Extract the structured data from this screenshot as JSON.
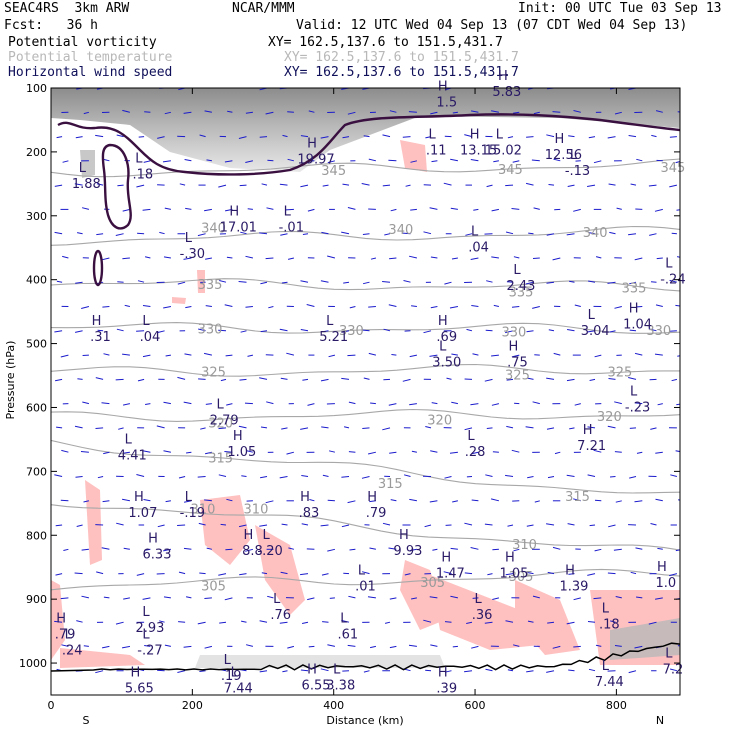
{
  "header": {
    "model": "SEAC4RS  3km ARW",
    "org": "NCAR/MMM",
    "init": "Init: 00 UTC Tue 03 Sep 13",
    "fcst": "Fcst:   36 h",
    "valid": "Valid: 12 UTC Wed 04 Sep 13 (07 CDT Wed 04 Sep 13)",
    "fields": [
      {
        "name": "Potential vorticity",
        "xy": "XY= 162.5,137.6 to 151.5,431.7",
        "color": "#000000"
      },
      {
        "name": "Potential temperature",
        "xy": "XY= 162.5,137.6 to 151.5,431.7",
        "color": "#b8b8b8"
      },
      {
        "name": "Horizontal wind speed",
        "xy": "XY= 162.5,137.6 to 151.5,431.7",
        "color": "#10105a"
      }
    ]
  },
  "chart_data": {
    "type": "cross-section",
    "xlabel": "Distance (km)",
    "ylabel": "Pressure (hPa)",
    "xlim": [
      0,
      890
    ],
    "ylim": [
      1050,
      100
    ],
    "x_ticks": [
      0,
      200,
      400,
      600,
      800
    ],
    "y_ticks": [
      100,
      200,
      300,
      400,
      500,
      600,
      700,
      800,
      900,
      1000
    ],
    "endpoints": {
      "left": "S",
      "right": "N"
    },
    "isentropes": [
      {
        "theta": "345",
        "label_positions": [
          [
            400,
            230
          ],
          [
            650,
            228
          ],
          [
            880,
            225
          ]
        ],
        "p_left": 232,
        "p_right": 220
      },
      {
        "theta": "340",
        "label_positions": [
          [
            230,
            320
          ],
          [
            495,
            322
          ],
          [
            770,
            327
          ]
        ],
        "p_left": 338,
        "p_right": 325
      },
      {
        "theta": "335",
        "label_positions": [
          [
            225,
            408
          ],
          [
            665,
            420
          ],
          [
            825,
            414
          ]
        ],
        "p_left": 405,
        "p_right": 412
      },
      {
        "theta": "330",
        "label_positions": [
          [
            225,
            478
          ],
          [
            425,
            480
          ],
          [
            655,
            483
          ],
          [
            860,
            480
          ]
        ],
        "p_left": 475,
        "p_right": 478
      },
      {
        "theta": "325",
        "label_positions": [
          [
            230,
            545
          ],
          [
            660,
            550
          ],
          [
            805,
            545
          ]
        ],
        "p_left": 545,
        "p_right": 540
      },
      {
        "theta": "320",
        "label_positions": [
          [
            240,
            625
          ],
          [
            550,
            620
          ],
          [
            790,
            615
          ]
        ],
        "p_left": 615,
        "p_right": 610
      },
      {
        "theta": "315",
        "label_positions": [
          [
            240,
            680
          ],
          [
            480,
            720
          ],
          [
            745,
            740
          ]
        ],
        "p_left": 655,
        "p_right": 740
      },
      {
        "theta": "310",
        "label_positions": [
          [
            215,
            760
          ],
          [
            290,
            760
          ],
          [
            670,
            815
          ]
        ],
        "p_left": 745,
        "p_right": 830
      },
      {
        "theta": "305",
        "label_positions": [
          [
            230,
            880
          ],
          [
            540,
            875
          ],
          [
            665,
            865
          ]
        ],
        "p_left": 880,
        "p_right": 860
      }
    ],
    "extrema": [
      {
        "type": "H",
        "value": "19.97",
        "x": 375,
        "p": 212
      },
      {
        "type": "L",
        "value": ".11",
        "x": 545,
        "p": 198
      },
      {
        "type": "H",
        "value": "13.15",
        "x": 605,
        "p": 198
      },
      {
        "type": "L",
        "value": "15.02",
        "x": 640,
        "p": 198
      },
      {
        "type": "H",
        "value": "12.56",
        "x": 725,
        "p": 205
      },
      {
        "type": "L",
        "value": "-.13",
        "x": 745,
        "p": 230
      },
      {
        "type": "H",
        "value": "1.5",
        "x": 560,
        "p": 123
      },
      {
        "type": "H",
        "value": "5.83",
        "x": 645,
        "p": 106
      },
      {
        "type": "L",
        "value": ".18",
        "x": 130,
        "p": 235
      },
      {
        "type": "L",
        "value": "1.88",
        "x": 50,
        "p": 250
      },
      {
        "type": "H",
        "value": "17.01",
        "x": 265,
        "p": 318
      },
      {
        "type": "L",
        "value": "-.01",
        "x": 340,
        "p": 318
      },
      {
        "type": "L",
        "value": "-.30",
        "x": 200,
        "p": 360
      },
      {
        "type": "L",
        "value": ".04",
        "x": 605,
        "p": 350
      },
      {
        "type": "L",
        "value": "2.43",
        "x": 665,
        "p": 410
      },
      {
        "type": "L",
        "value": "-.24",
        "x": 880,
        "p": 400
      },
      {
        "type": "H",
        "value": ".31",
        "x": 70,
        "p": 490
      },
      {
        "type": "L",
        "value": ".04",
        "x": 140,
        "p": 490
      },
      {
        "type": "L",
        "value": "5.21",
        "x": 400,
        "p": 490
      },
      {
        "type": "H",
        "value": ".69",
        "x": 560,
        "p": 490
      },
      {
        "type": "L",
        "value": "3.04",
        "x": 770,
        "p": 480
      },
      {
        "type": "H",
        "value": "1.04",
        "x": 830,
        "p": 470
      },
      {
        "type": "L",
        "value": "3.50",
        "x": 560,
        "p": 530
      },
      {
        "type": "H",
        "value": ".75",
        "x": 660,
        "p": 530
      },
      {
        "type": "L",
        "value": "-.23",
        "x": 830,
        "p": 600
      },
      {
        "type": "L",
        "value": "2.79",
        "x": 245,
        "p": 620
      },
      {
        "type": "L",
        "value": "4.41",
        "x": 115,
        "p": 675
      },
      {
        "type": "H",
        "value": "1.05",
        "x": 270,
        "p": 670
      },
      {
        "type": "L",
        "value": ".28",
        "x": 600,
        "p": 670
      },
      {
        "type": "H",
        "value": "7.21",
        "x": 765,
        "p": 660
      },
      {
        "type": "H",
        "value": "1.07",
        "x": 130,
        "p": 765
      },
      {
        "type": "L",
        "value": "-.19",
        "x": 200,
        "p": 765
      },
      {
        "type": "H",
        "value": ".83",
        "x": 365,
        "p": 765
      },
      {
        "type": "H",
        "value": ".79",
        "x": 460,
        "p": 765
      },
      {
        "type": "H",
        "value": "6.33",
        "x": 150,
        "p": 830
      },
      {
        "type": "H",
        "value": "8.8",
        "x": 285,
        "p": 825
      },
      {
        "type": "L",
        "value": "-.20",
        "x": 310,
        "p": 825
      },
      {
        "type": "H",
        "value": "9.93",
        "x": 505,
        "p": 825
      },
      {
        "type": "H",
        "value": "1.47",
        "x": 565,
        "p": 860
      },
      {
        "type": "H",
        "value": "1.05",
        "x": 655,
        "p": 860
      },
      {
        "type": "H",
        "value": "1.39",
        "x": 740,
        "p": 880
      },
      {
        "type": "H",
        "value": "1.0",
        "x": 870,
        "p": 875
      },
      {
        "type": "L",
        "value": ".01",
        "x": 445,
        "p": 880
      },
      {
        "type": "L",
        "value": ".76",
        "x": 325,
        "p": 925
      },
      {
        "type": "L",
        "value": ".36",
        "x": 610,
        "p": 925
      },
      {
        "type": "H",
        "value": ".79",
        "x": 20,
        "p": 955
      },
      {
        "type": "L",
        "value": "2.93",
        "x": 140,
        "p": 945
      },
      {
        "type": "L",
        "value": ".61",
        "x": 420,
        "p": 955
      },
      {
        "type": "L",
        "value": ".18",
        "x": 790,
        "p": 940
      },
      {
        "type": "L",
        "value": ".24",
        "x": 30,
        "p": 980
      },
      {
        "type": "L",
        "value": "-.27",
        "x": 140,
        "p": 980
      },
      {
        "type": "L",
        "value": ".19",
        "x": 255,
        "p": 1020
      },
      {
        "type": "L",
        "value": "7.44",
        "x": 265,
        "p": 1040
      },
      {
        "type": "L",
        "value": "7.2",
        "x": 880,
        "p": 1010
      },
      {
        "type": "H",
        "value": "5.65",
        "x": 125,
        "p": 1040
      },
      {
        "type": "H",
        "value": "6.55",
        "x": 375,
        "p": 1035
      },
      {
        "type": "L",
        "value": "3.38",
        "x": 410,
        "p": 1035
      },
      {
        "type": "H",
        "value": ".39",
        "x": 560,
        "p": 1040
      },
      {
        "type": "L",
        "value": "7.44",
        "x": 790,
        "p": 1030
      }
    ]
  }
}
